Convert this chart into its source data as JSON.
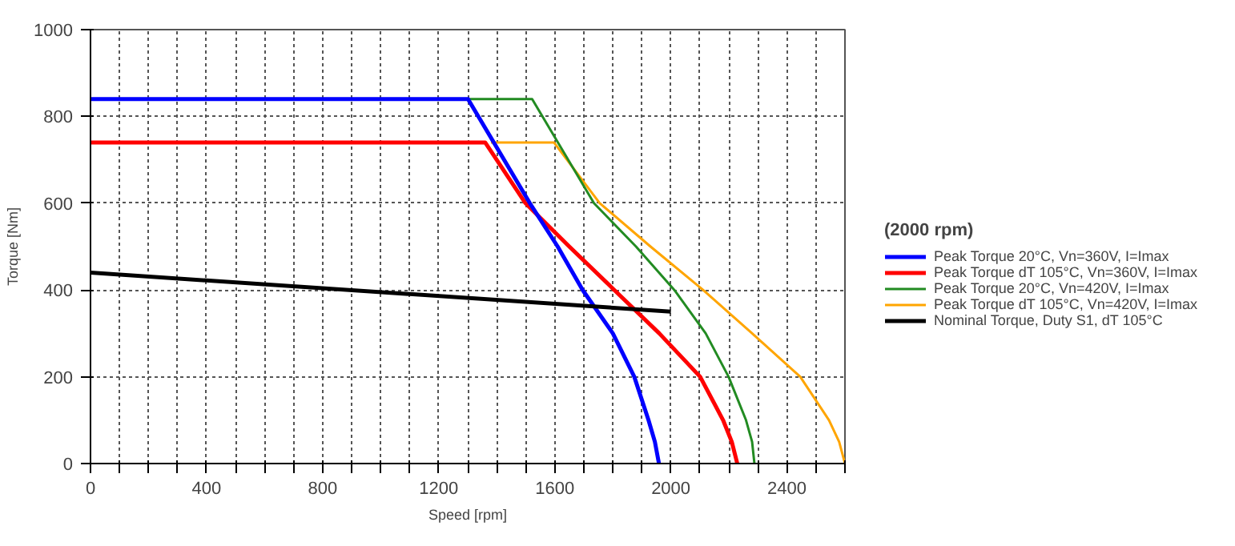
{
  "chart_data": {
    "type": "line",
    "xlabel": "Speed [rpm]",
    "ylabel": "Torque [Nm]",
    "legend_title": "(2000 rpm)",
    "legend": "right",
    "grid": true,
    "line_style": "solid",
    "marker": "none",
    "xlim": [
      0,
      2600
    ],
    "ylim": [
      0,
      1000
    ],
    "xticks": [
      0,
      {
        "value": 100,
        "label": null
      },
      {
        "value": 200,
        "label": null
      },
      {
        "value": 300,
        "label": null
      },
      400,
      {
        "value": 500,
        "label": null
      },
      {
        "value": 600,
        "label": null
      },
      {
        "value": 700,
        "label": null
      },
      800,
      {
        "value": 900,
        "label": null
      },
      {
        "value": 1000,
        "label": null
      },
      {
        "value": 1100,
        "label": null
      },
      1200,
      {
        "value": 1300,
        "label": null
      },
      {
        "value": 1400,
        "label": null
      },
      {
        "value": 1500,
        "label": null
      },
      1600,
      {
        "value": 1700,
        "label": null
      },
      {
        "value": 1800,
        "label": null
      },
      {
        "value": 1900,
        "label": null
      },
      2000,
      {
        "value": 2100,
        "label": null
      },
      {
        "value": 2200,
        "label": null
      },
      {
        "value": 2300,
        "label": null
      },
      2400,
      {
        "value": 2500,
        "label": null
      },
      {
        "value": 2600,
        "label": null
      }
    ],
    "yticks": [
      0,
      200,
      400,
      600,
      800,
      1000
    ],
    "series": [
      {
        "name": "Peak Torque dT 105°C, Vn=420V, I=Imax",
        "color": "#ffa500",
        "x": [
          1380,
          1597,
          1755,
          1930,
          2111,
          2280,
          2446,
          2545,
          2580,
          2600
        ],
        "values": [
          740,
          740,
          600,
          500,
          400,
          300,
          200,
          100,
          50,
          0
        ]
      },
      {
        "name": "Peak Torque 20°C, Vn=420V, I=Imax",
        "color": "#228b22",
        "x": [
          1301,
          1522,
          1735,
          1880,
          2012,
          2120,
          2199,
          2259,
          2280,
          2288
        ],
        "values": [
          840,
          840,
          600,
          500,
          400,
          300,
          200,
          100,
          50,
          0
        ]
      },
      {
        "name": "Peak Torque dT 105°C, Vn=360V, I=Imax",
        "color": "#ff0000",
        "x": [
          0,
          1360,
          1499,
          1650,
          1805,
          1960,
          2101,
          2180,
          2210,
          2229
        ],
        "values": [
          740,
          740,
          600,
          500,
          400,
          300,
          200,
          100,
          50,
          0
        ]
      },
      {
        "name": "Peak Torque 20°C, Vn=360V, I=Imax",
        "color": "#0000ff",
        "x": [
          0,
          1301,
          1514,
          1610,
          1696,
          1800,
          1874,
          1923,
          1945,
          1959
        ],
        "values": [
          840,
          840,
          600,
          500,
          400,
          300,
          200,
          100,
          50,
          0
        ]
      },
      {
        "name": "Nominal Torque, Duty S1, dT 105°C",
        "color": "#000000",
        "x": [
          0,
          2000
        ],
        "values": [
          440,
          350
        ]
      }
    ]
  }
}
